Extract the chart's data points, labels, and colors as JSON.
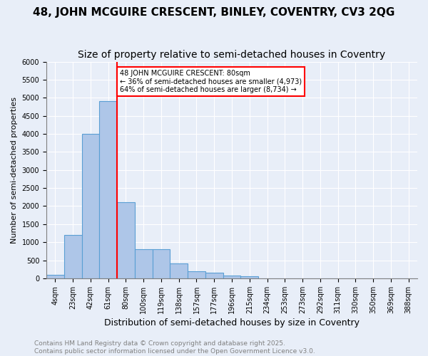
{
  "title": "48, JOHN MCGUIRE CRESCENT, BINLEY, COVENTRY, CV3 2QG",
  "subtitle": "Size of property relative to semi-detached houses in Coventry",
  "xlabel": "Distribution of semi-detached houses by size in Coventry",
  "ylabel": "Number of semi-detached properties",
  "bins": [
    "4sqm",
    "23sqm",
    "42sqm",
    "61sqm",
    "80sqm",
    "100sqm",
    "119sqm",
    "138sqm",
    "157sqm",
    "177sqm",
    "196sqm",
    "215sqm",
    "234sqm",
    "253sqm",
    "273sqm",
    "292sqm",
    "311sqm",
    "330sqm",
    "350sqm",
    "369sqm",
    "388sqm"
  ],
  "values": [
    100,
    1200,
    4000,
    4900,
    2100,
    800,
    800,
    420,
    200,
    150,
    80,
    50,
    0,
    0,
    0,
    0,
    0,
    0,
    0,
    0,
    0
  ],
  "bar_color": "#aec6e8",
  "bar_edge_color": "#5a9fd4",
  "vline_index": 4,
  "annotation_text": "48 JOHN MCGUIRE CRESCENT: 80sqm\n← 36% of semi-detached houses are smaller (4,973)\n64% of semi-detached houses are larger (8,734) →",
  "annotation_box_color": "white",
  "annotation_box_edge_color": "red",
  "vline_color": "red",
  "ylim": [
    0,
    6000
  ],
  "yticks": [
    0,
    500,
    1000,
    1500,
    2000,
    2500,
    3000,
    3500,
    4000,
    4500,
    5000,
    5500,
    6000
  ],
  "background_color": "#e8eef8",
  "footer": "Contains HM Land Registry data © Crown copyright and database right 2025.\nContains public sector information licensed under the Open Government Licence v3.0.",
  "title_fontsize": 11,
  "subtitle_fontsize": 10,
  "xlabel_fontsize": 9,
  "ylabel_fontsize": 8,
  "tick_fontsize": 7,
  "footer_fontsize": 6.5
}
